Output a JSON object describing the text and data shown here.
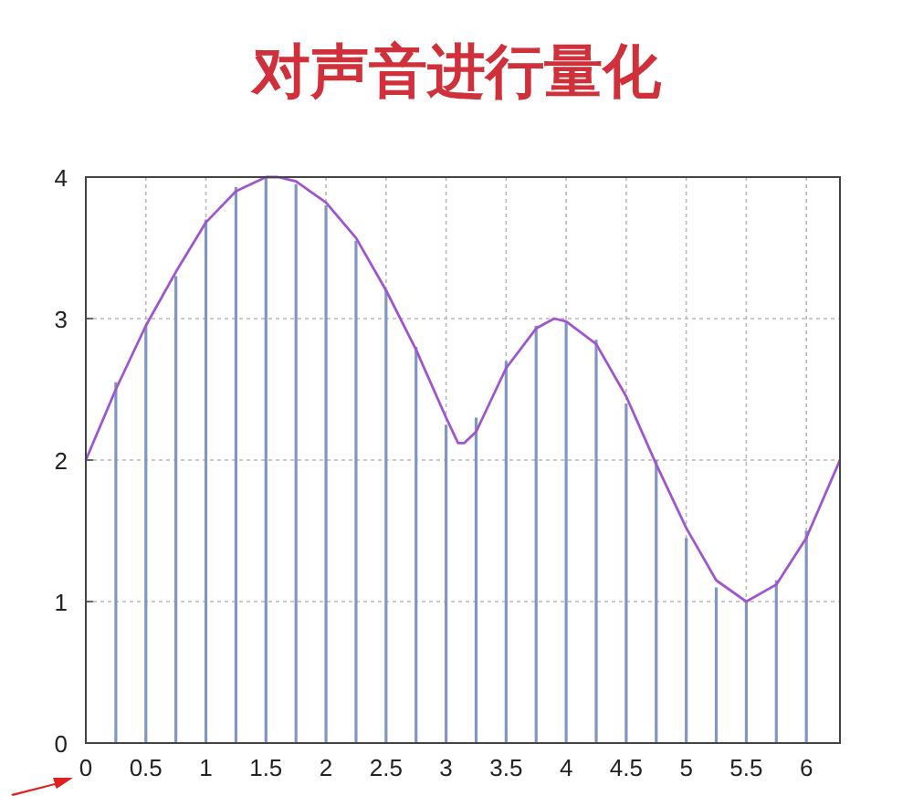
{
  "chart_data": {
    "type": "line",
    "title": "对声音进行量化",
    "xlim": [
      0,
      6.28
    ],
    "ylim": [
      0,
      4
    ],
    "xticks": [
      0,
      0.5,
      1,
      1.5,
      2,
      2.5,
      3,
      3.5,
      4,
      4.5,
      5,
      5.5,
      6
    ],
    "yticks": [
      0,
      1,
      2,
      3,
      4
    ],
    "grid": true,
    "series": [
      {
        "type": "bar",
        "color": "#8096c4",
        "x": [
          0.25,
          0.5,
          0.75,
          1,
          1.25,
          1.5,
          1.75,
          2,
          2.25,
          2.5,
          2.75,
          3,
          3.25,
          3.5,
          3.75,
          4,
          4.25,
          4.5,
          4.75,
          5,
          5.25,
          5.5,
          5.75,
          6
        ],
        "values": [
          2.55,
          2.95,
          3.3,
          3.7,
          3.93,
          4.0,
          3.95,
          3.8,
          3.55,
          3.2,
          2.8,
          2.25,
          2.3,
          2.7,
          2.95,
          2.98,
          2.85,
          2.4,
          2.0,
          1.45,
          1.1,
          1.0,
          1.15,
          1.5
        ]
      },
      {
        "color": "#a055d0",
        "x": [
          0,
          0.25,
          0.5,
          0.75,
          1,
          1.25,
          1.5,
          1.6,
          1.75,
          2,
          2.25,
          2.5,
          2.75,
          3,
          3.1,
          3.15,
          3.25,
          3.5,
          3.75,
          3.9,
          4,
          4.25,
          4.5,
          4.75,
          5,
          5.25,
          5.5,
          5.75,
          6,
          6.28
        ],
        "values": [
          2.0,
          2.5,
          2.95,
          3.33,
          3.68,
          3.9,
          4.0,
          4.0,
          3.97,
          3.82,
          3.57,
          3.2,
          2.78,
          2.3,
          2.12,
          2.12,
          2.2,
          2.65,
          2.93,
          3.0,
          2.98,
          2.82,
          2.45,
          1.97,
          1.52,
          1.15,
          1.0,
          1.12,
          1.45,
          2.0
        ]
      }
    ]
  }
}
